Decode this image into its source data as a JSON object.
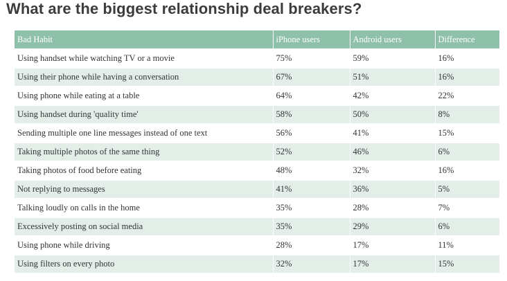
{
  "title": "What are the biggest relationship deal breakers?",
  "colors": {
    "header_bg": "#8fc0a9",
    "stripe": "#e4eee9"
  },
  "chart_data": {
    "type": "table",
    "title": "What are the biggest relationship deal breakers?",
    "columns": [
      "Bad Habit",
      "iPhone users",
      "Android users",
      "Difference"
    ],
    "rows": [
      [
        "Using handset while watching TV or a movie",
        "75%",
        "59%",
        "16%"
      ],
      [
        "Using their phone while having a conversation",
        "67%",
        "51%",
        "16%"
      ],
      [
        "Using phone while eating at a table",
        "64%",
        "42%",
        "22%"
      ],
      [
        "Using handset during 'quality time'",
        "58%",
        "50%",
        "8%"
      ],
      [
        "Sending multiple one line messages instead of one text",
        "56%",
        "41%",
        "15%"
      ],
      [
        "Taking multiple photos of the same thing",
        "52%",
        "46%",
        "6%"
      ],
      [
        "Taking photos of food before eating",
        "48%",
        "32%",
        "16%"
      ],
      [
        "Not replying to messages",
        "41%",
        "36%",
        "5%"
      ],
      [
        "Talking loudly on calls in the home",
        "35%",
        "28%",
        "7%"
      ],
      [
        "Excessively posting on social media",
        "35%",
        "29%",
        "6%"
      ],
      [
        "Using phone while driving",
        "28%",
        "17%",
        "11%"
      ],
      [
        "Using filters on every photo",
        "32%",
        "17%",
        "15%"
      ]
    ]
  }
}
